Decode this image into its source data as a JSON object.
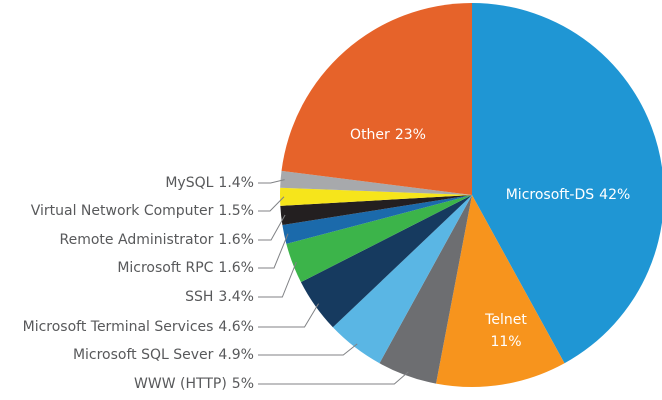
{
  "chart_data": {
    "type": "pie",
    "categories": [
      "Microsoft-DS",
      "Telnet",
      "WWW (HTTP)",
      "Microsoft SQL Sever",
      "Microsoft Terminal Services",
      "SSH",
      "Microsoft RPC",
      "Remote Administrator",
      "Virtual Network Computer",
      "MySQL",
      "Other"
    ],
    "values": [
      42,
      11,
      5,
      4.9,
      4.6,
      3.4,
      1.6,
      1.6,
      1.5,
      1.4,
      23
    ],
    "value_labels": [
      "42%",
      "11%",
      "5%",
      "4.9%",
      "4.6%",
      "3.4%",
      "1.6%",
      "1.6%",
      "1.5%",
      "1.4%",
      "23%"
    ],
    "colors": [
      "#1f96d4",
      "#f7941d",
      "#6d6e71",
      "#5ab6e4",
      "#163a5f",
      "#3cb44a",
      "#1b6aab",
      "#231f20",
      "#f6e51b",
      "#a7a9ac",
      "#e6632a"
    ]
  }
}
